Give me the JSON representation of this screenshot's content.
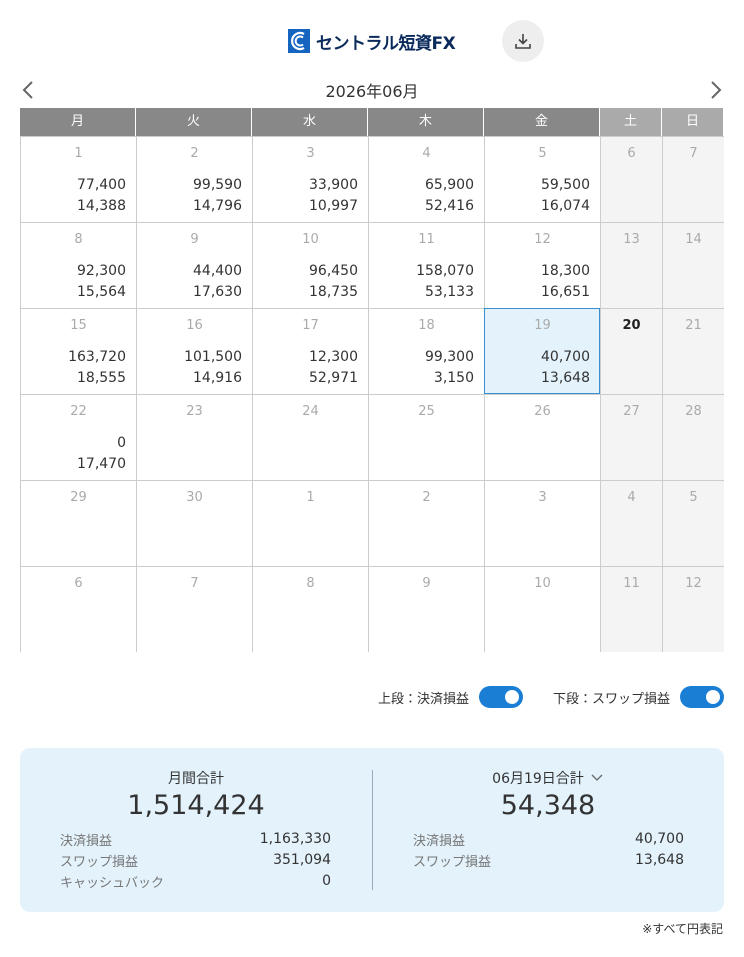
{
  "header": {
    "brand": "セントラル短資FX"
  },
  "calendar": {
    "month": "2026年06月",
    "weekdays": [
      "月",
      "火",
      "水",
      "木",
      "金",
      "土",
      "日"
    ],
    "weeks": [
      [
        {
          "day": "1",
          "top": "77,400",
          "bottom": "14,388"
        },
        {
          "day": "2",
          "top": "99,590",
          "bottom": "14,796"
        },
        {
          "day": "3",
          "top": "33,900",
          "bottom": "10,997"
        },
        {
          "day": "4",
          "top": "65,900",
          "bottom": "52,416"
        },
        {
          "day": "5",
          "top": "59,500",
          "bottom": "16,074"
        },
        {
          "day": "6"
        },
        {
          "day": "7"
        }
      ],
      [
        {
          "day": "8",
          "top": "92,300",
          "bottom": "15,564"
        },
        {
          "day": "9",
          "top": "44,400",
          "bottom": "17,630"
        },
        {
          "day": "10",
          "top": "96,450",
          "bottom": "18,735"
        },
        {
          "day": "11",
          "top": "158,070",
          "bottom": "53,133"
        },
        {
          "day": "12",
          "top": "18,300",
          "bottom": "16,651"
        },
        {
          "day": "13"
        },
        {
          "day": "14"
        }
      ],
      [
        {
          "day": "15",
          "top": "163,720",
          "bottom": "18,555"
        },
        {
          "day": "16",
          "top": "101,500",
          "bottom": "14,916"
        },
        {
          "day": "17",
          "top": "12,300",
          "bottom": "52,971"
        },
        {
          "day": "18",
          "top": "99,300",
          "bottom": "3,150"
        },
        {
          "day": "19",
          "top": "40,700",
          "bottom": "13,648",
          "selected": true
        },
        {
          "day": "20",
          "today": true
        },
        {
          "day": "21"
        }
      ],
      [
        {
          "day": "22",
          "top": "0",
          "bottom": "17,470"
        },
        {
          "day": "23"
        },
        {
          "day": "24"
        },
        {
          "day": "25"
        },
        {
          "day": "26"
        },
        {
          "day": "27"
        },
        {
          "day": "28"
        }
      ],
      [
        {
          "day": "29"
        },
        {
          "day": "30"
        },
        {
          "day": "1"
        },
        {
          "day": "2"
        },
        {
          "day": "3"
        },
        {
          "day": "4"
        },
        {
          "day": "5"
        }
      ],
      [
        {
          "day": "6"
        },
        {
          "day": "7"
        },
        {
          "day": "8"
        },
        {
          "day": "9"
        },
        {
          "day": "10"
        },
        {
          "day": "11"
        },
        {
          "day": "12"
        }
      ]
    ]
  },
  "toggles": [
    {
      "label": "上段：決済損益"
    },
    {
      "label": "下段：スワップ損益"
    }
  ],
  "summary": {
    "monthly": {
      "title": "月間合計",
      "total": "1,514,424",
      "rows": [
        {
          "label": "決済損益",
          "value": "1,163,330"
        },
        {
          "label": "スワップ損益",
          "value": "351,094"
        },
        {
          "label": "キャッシュバック",
          "value": "0"
        }
      ]
    },
    "daily": {
      "title": "06月19日合計",
      "total": "54,348",
      "rows": [
        {
          "label": "決済損益",
          "value": "40,700"
        },
        {
          "label": "スワップ損益",
          "value": "13,648"
        }
      ]
    }
  },
  "note": "※すべて円表記"
}
